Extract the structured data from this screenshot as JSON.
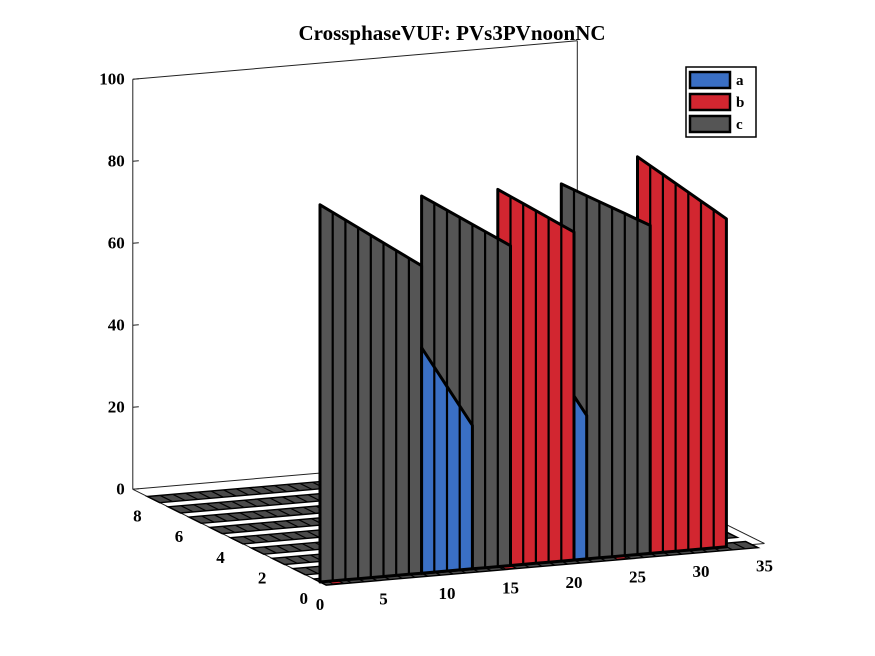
{
  "chart_data": {
    "type": "ribbon3d",
    "title": "CrossphaseVUF: PVs3PVnoonNC",
    "xlabel": "",
    "ylabel": "",
    "zlabel": "",
    "xlim": [
      0,
      35
    ],
    "ylim": [
      0,
      9
    ],
    "zlim": [
      0,
      100
    ],
    "x_ticks": [
      "0",
      "5",
      "10",
      "15",
      "20",
      "25",
      "30",
      "35"
    ],
    "y_ticks": [
      "0",
      "2",
      "4",
      "6",
      "8"
    ],
    "z_ticks": [
      "0",
      "20",
      "40",
      "60",
      "80",
      "100"
    ],
    "grid": false,
    "legend_position": "top-right",
    "series": [
      {
        "name": "a",
        "color": "#3a6fc4"
      },
      {
        "name": "b",
        "color": "#d22630"
      },
      {
        "name": "c",
        "color": "#555555"
      }
    ],
    "ribbons": [
      {
        "series": "c",
        "x_start": 0,
        "x_end": 8,
        "z_start": 92,
        "z_end": 75
      },
      {
        "series": "c",
        "x_start": 8,
        "x_end": 15,
        "z_start": 92,
        "z_end": 78
      },
      {
        "series": "a",
        "x_start": 8,
        "x_end": 12,
        "z_start": 55,
        "z_end": 35
      },
      {
        "series": "b",
        "x_start": 14,
        "x_end": 20,
        "z_start": 92,
        "z_end": 80
      },
      {
        "series": "c",
        "x_start": 19,
        "x_end": 26,
        "z_start": 92,
        "z_end": 80
      },
      {
        "series": "a",
        "x_start": 20,
        "x_end": 21,
        "z_start": 40,
        "z_end": 35
      },
      {
        "series": "b",
        "x_start": 25,
        "x_end": 32,
        "z_start": 97,
        "z_end": 80
      }
    ]
  }
}
